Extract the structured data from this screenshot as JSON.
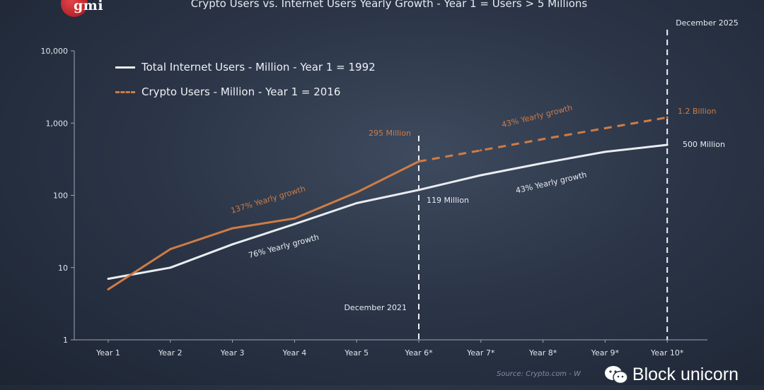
{
  "logo_text": "gmi",
  "title": "Crypto Users vs. Internet Users Yearly Growth - Year 1 = Users > 5 Millions",
  "source": "Source: Crypto.com - W",
  "brand": "Block unicorn",
  "colors": {
    "internet": "#e9edf2",
    "crypto": "#cf7c45",
    "axis": "#9ba6b6"
  },
  "chart_data": {
    "type": "line",
    "title": "Crypto Users vs. Internet Users Yearly Growth - Year 1 = Users > 5 Millions",
    "y_scale": "log",
    "ylim": [
      1,
      10000
    ],
    "y_ticks": [
      1,
      10,
      100,
      1000,
      10000
    ],
    "y_tick_labels": [
      "1",
      "10",
      "100",
      "1,000",
      "10,000"
    ],
    "categories": [
      "Year 1",
      "Year 2",
      "Year 3",
      "Year 4",
      "Year 5",
      "Year 6*",
      "Year 7*",
      "Year 8*",
      "Year 9*",
      "Year 10*"
    ],
    "series": [
      {
        "name": "Total Internet Users - Million - Year 1 = 1992",
        "style": "solid",
        "color": "#e9edf2",
        "values": [
          7,
          10,
          21,
          40,
          78,
          119,
          190,
          280,
          400,
          500
        ]
      },
      {
        "name": "Crypto Users - Million - Year 1 = 2016",
        "style": "solid-then-dashed",
        "dashed_from_index": 5,
        "color": "#cf7c45",
        "values": [
          5,
          18,
          35,
          48,
          110,
          295,
          420,
          600,
          850,
          1200
        ]
      }
    ],
    "legend_position": "top-left",
    "vlines": [
      {
        "index": 5,
        "label": "December 2021",
        "label_pos": "bottom"
      },
      {
        "index": 9,
        "label": "December 2025",
        "label_pos": "top"
      }
    ],
    "annotations": [
      {
        "id": "crypto-early",
        "text": "137% Yearly growth",
        "color": "#cf7c45"
      },
      {
        "id": "internet-early",
        "text": "76% Yearly growth",
        "color": "#e9edf2"
      },
      {
        "id": "crypto-late",
        "text": "43% Yearly growth",
        "color": "#cf7c45"
      },
      {
        "id": "internet-late",
        "text": "43% Yearly growth",
        "color": "#e9edf2"
      },
      {
        "id": "crypto-dec21",
        "text": "295 Million",
        "color": "#cf7c45"
      },
      {
        "id": "internet-dec21",
        "text": "119 Million",
        "color": "#e9edf2"
      },
      {
        "id": "crypto-dec25",
        "text": "1.2 Billion",
        "color": "#cf7c45"
      },
      {
        "id": "internet-dec25",
        "text": "500 Million",
        "color": "#e9edf2"
      }
    ]
  }
}
